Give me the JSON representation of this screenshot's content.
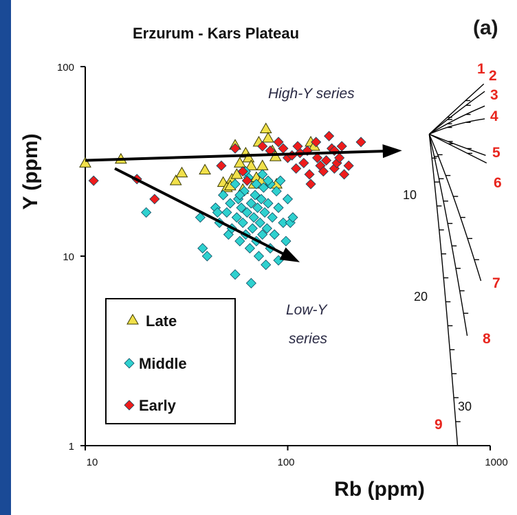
{
  "chart_data": {
    "type": "scatter",
    "title": "Erzurum - Kars Plateau",
    "panel_label": "(a)",
    "xlabel": "Rb (ppm)",
    "ylabel": "Y (ppm)",
    "x_scale": "log",
    "y_scale": "log",
    "xlim": [
      10,
      1000
    ],
    "ylim": [
      1,
      100
    ],
    "x_ticks": [
      "10",
      "100",
      "1000"
    ],
    "y_ticks": [
      "1",
      "10",
      "100"
    ],
    "grid": false,
    "legend_position": "bottom-left",
    "colors": {
      "late": "#f1e04a",
      "middle": "#2fd1cf",
      "early": "#ee1c1c"
    },
    "series": [
      {
        "name": "Late",
        "marker": "triangle",
        "points": [
          [
            10,
            31
          ],
          [
            15,
            32.5
          ],
          [
            28,
            25
          ],
          [
            30,
            27.5
          ],
          [
            39,
            28.5
          ],
          [
            48,
            24.5
          ],
          [
            50,
            23
          ],
          [
            53,
            25.5
          ],
          [
            55,
            38.5
          ],
          [
            58,
            31
          ],
          [
            62,
            35
          ],
          [
            64,
            33
          ],
          [
            66,
            30
          ],
          [
            68,
            24
          ],
          [
            70,
            26
          ],
          [
            72,
            40
          ],
          [
            75,
            30
          ],
          [
            78,
            47
          ],
          [
            80,
            42
          ],
          [
            84,
            36
          ],
          [
            87,
            33.5
          ],
          [
            130,
            40
          ],
          [
            135,
            38
          ],
          [
            52,
            23.5
          ],
          [
            56,
            27
          ],
          [
            60,
            22.5
          ],
          [
            74,
            25
          ],
          [
            88,
            24
          ]
        ]
      },
      {
        "name": "Middle",
        "marker": "diamond",
        "points": [
          [
            20,
            17
          ],
          [
            37,
            16
          ],
          [
            38,
            11
          ],
          [
            40,
            10
          ],
          [
            44,
            18
          ],
          [
            46,
            15
          ],
          [
            48,
            21
          ],
          [
            50,
            17
          ],
          [
            51,
            13
          ],
          [
            52,
            19
          ],
          [
            53,
            14
          ],
          [
            55,
            24
          ],
          [
            56,
            16
          ],
          [
            57,
            20
          ],
          [
            58,
            12
          ],
          [
            59,
            18
          ],
          [
            60,
            15
          ],
          [
            61,
            22
          ],
          [
            62,
            13
          ],
          [
            63,
            17
          ],
          [
            64,
            26
          ],
          [
            65,
            11
          ],
          [
            66,
            19
          ],
          [
            67,
            14
          ],
          [
            68,
            16
          ],
          [
            69,
            21
          ],
          [
            70,
            12
          ],
          [
            71,
            18
          ],
          [
            72,
            10
          ],
          [
            73,
            15
          ],
          [
            74,
            20
          ],
          [
            75,
            13
          ],
          [
            76,
            23
          ],
          [
            77,
            17
          ],
          [
            78,
            9
          ],
          [
            79,
            14
          ],
          [
            80,
            19
          ],
          [
            82,
            11
          ],
          [
            84,
            16
          ],
          [
            86,
            13
          ],
          [
            88,
            22
          ],
          [
            90,
            18
          ],
          [
            92,
            25
          ],
          [
            95,
            15
          ],
          [
            98,
            12
          ],
          [
            100,
            20
          ],
          [
            103,
            15
          ],
          [
            106,
            16
          ],
          [
            55,
            8
          ],
          [
            66,
            7.2
          ],
          [
            45,
            17
          ],
          [
            62,
            28
          ],
          [
            75,
            27
          ],
          [
            82,
            24
          ],
          [
            90,
            9.5
          ],
          [
            58,
            21
          ],
          [
            70,
            24
          ],
          [
            80,
            25
          ]
        ]
      },
      {
        "name": "Early",
        "marker": "diamond",
        "points": [
          [
            11,
            25
          ],
          [
            18,
            25.5
          ],
          [
            22,
            20
          ],
          [
            47,
            30
          ],
          [
            55,
            37
          ],
          [
            60,
            28
          ],
          [
            63,
            25
          ],
          [
            75,
            38
          ],
          [
            82,
            36
          ],
          [
            90,
            40
          ],
          [
            95,
            37
          ],
          [
            100,
            33
          ],
          [
            105,
            34
          ],
          [
            110,
            29
          ],
          [
            115,
            35
          ],
          [
            120,
            31
          ],
          [
            125,
            36
          ],
          [
            128,
            27
          ],
          [
            130,
            24
          ],
          [
            140,
            33
          ],
          [
            145,
            30
          ],
          [
            150,
            28
          ],
          [
            155,
            32
          ],
          [
            160,
            43
          ],
          [
            165,
            37
          ],
          [
            170,
            29
          ],
          [
            175,
            31
          ],
          [
            180,
            33
          ],
          [
            185,
            38
          ],
          [
            190,
            27
          ],
          [
            200,
            30
          ],
          [
            230,
            40
          ],
          [
            112,
            38
          ],
          [
            138,
            40
          ],
          [
            170,
            36
          ]
        ]
      }
    ],
    "trend_arrows": [
      {
        "label": [
          "High-Y series"
        ],
        "from": [
          10,
          32
        ],
        "to": [
          350,
          36
        ]
      },
      {
        "label": [
          "Low-Y",
          "series"
        ],
        "from": [
          14,
          29
        ],
        "to": [
          110,
          9.5
        ]
      }
    ],
    "model_curves": {
      "origin": [
        500,
        44
      ],
      "curves": [
        {
          "id": "1",
          "end": [
            930,
            81
          ]
        },
        {
          "id": "2",
          "end": [
            940,
            74
          ]
        },
        {
          "id": "3",
          "end": [
            940,
            62
          ]
        },
        {
          "id": "4",
          "end": [
            940,
            53
          ]
        },
        {
          "id": "5",
          "end": [
            950,
            34
          ]
        },
        {
          "id": "6",
          "end": [
            960,
            31
          ]
        },
        {
          "id": "7",
          "end": [
            900,
            7.4
          ]
        },
        {
          "id": "8",
          "end": [
            770,
            3.8
          ]
        },
        {
          "id": "9",
          "end": [
            690,
            1
          ]
        }
      ],
      "percent_labels": [
        "10",
        "20",
        "30"
      ]
    }
  }
}
